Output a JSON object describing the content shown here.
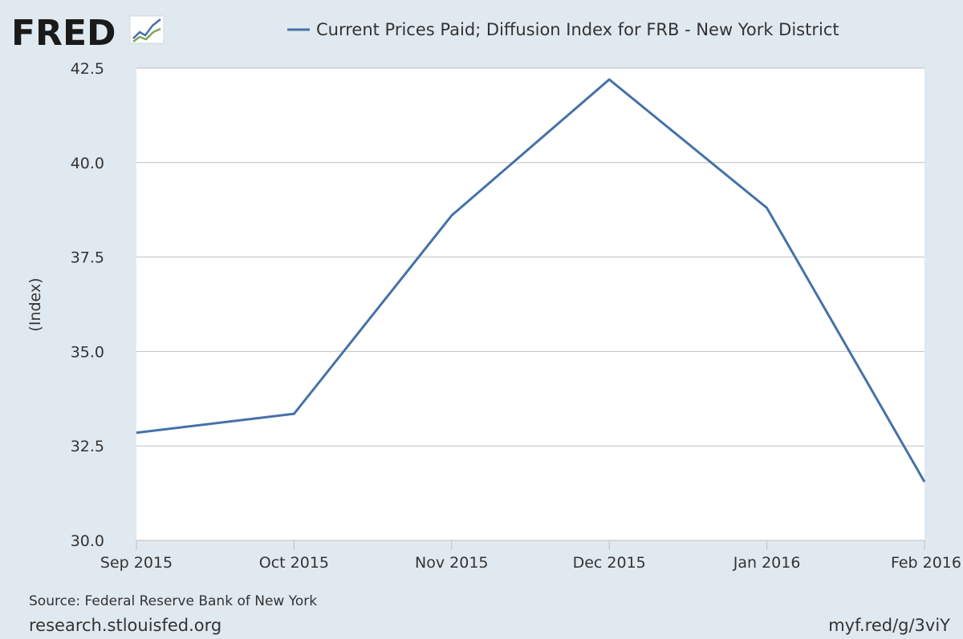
{
  "logo": {
    "text": "FRED",
    "icon": "trend-chart-icon"
  },
  "footer": {
    "source": "Source: Federal Reserve Bank of New York",
    "site": "research.stlouisfed.org",
    "short_link": "myf.red/g/3viY"
  },
  "colors": {
    "background": "#e1e9f0",
    "plot_area": "#ffffff",
    "grid": "#c0c0c0",
    "series": "#4572a7"
  },
  "chart_data": {
    "type": "line",
    "ylabel": "(Index)",
    "xlabel": "",
    "ylim": [
      30.0,
      42.5
    ],
    "yticks": [
      "42.5",
      "40.0",
      "37.5",
      "35.0",
      "32.5",
      "30.0"
    ],
    "ytick_values": [
      42.5,
      40.0,
      37.5,
      35.0,
      32.5,
      30.0
    ],
    "categories": [
      "Sep 2015",
      "Oct 2015",
      "Nov 2015",
      "Dec 2015",
      "Jan 2016",
      "Feb 2016"
    ],
    "grid": true,
    "legend_position": "top",
    "series": [
      {
        "name": "Current Prices Paid; Diffusion Index for FRB - New York District",
        "values": [
          32.85,
          33.35,
          38.6,
          42.2,
          38.8,
          31.55
        ]
      }
    ]
  }
}
